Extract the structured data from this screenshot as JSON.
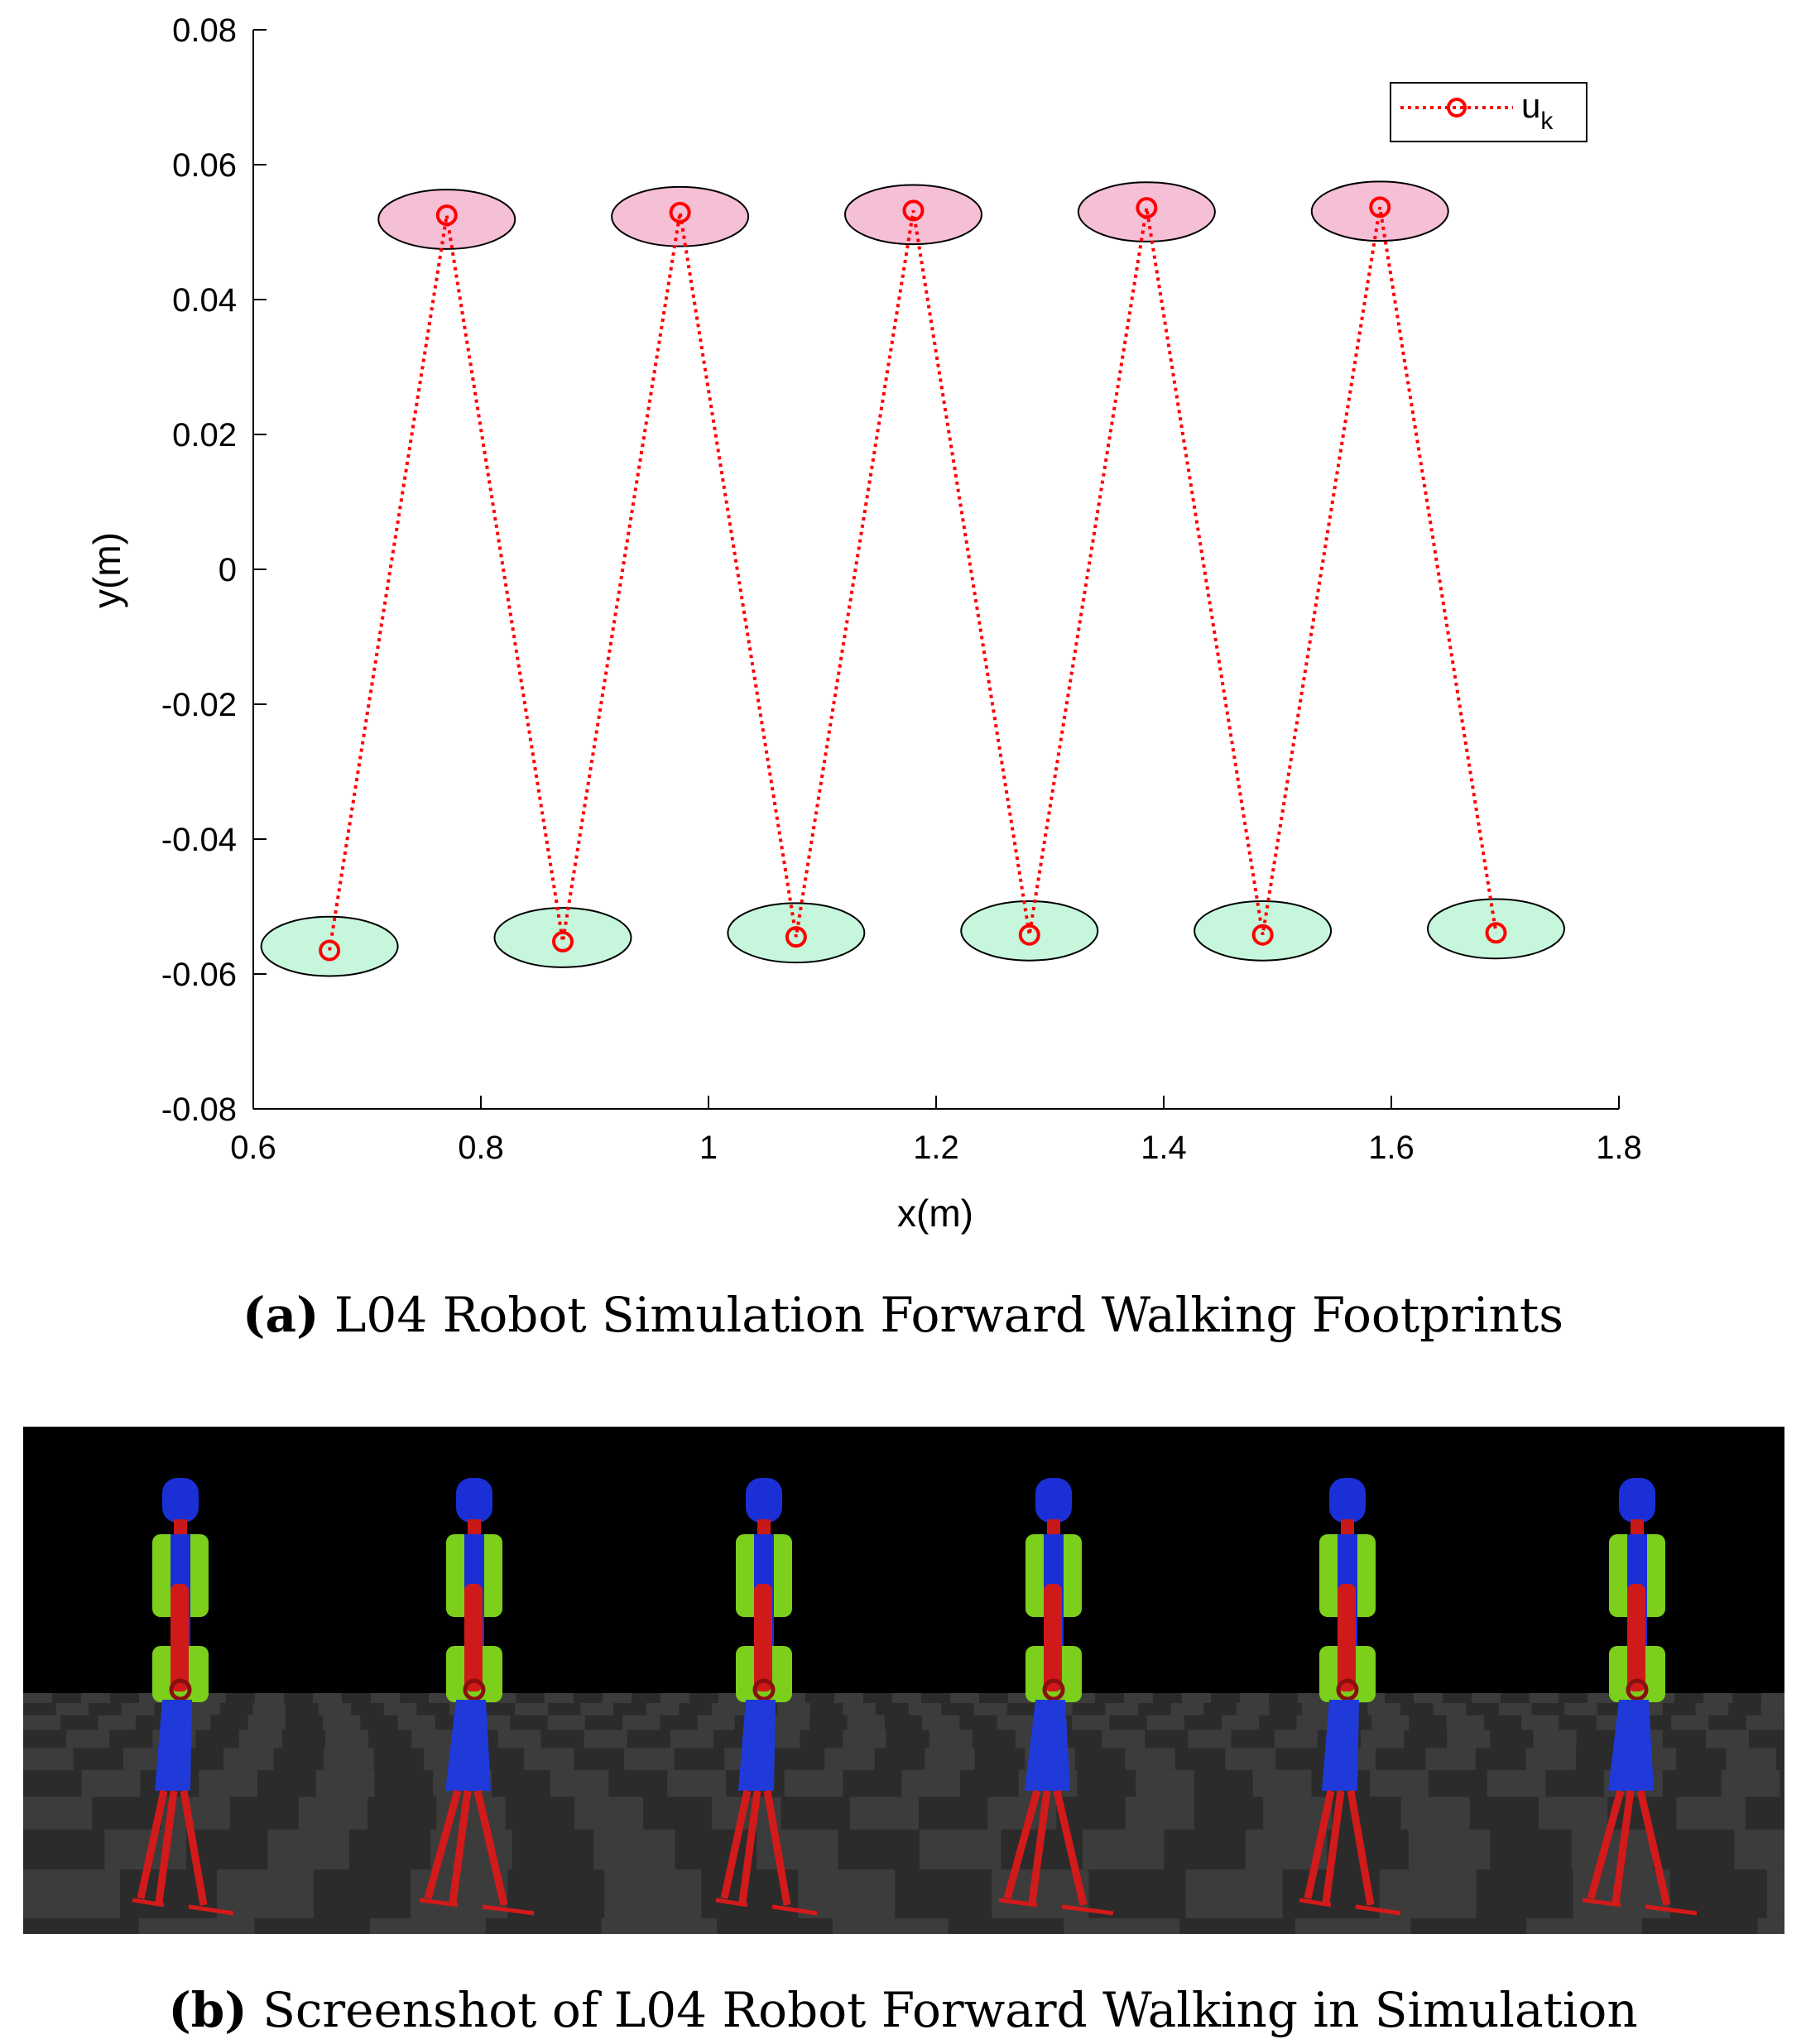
{
  "chart_data": {
    "type": "scatter",
    "title": "",
    "xlabel": "x(m)",
    "ylabel": "y(m)",
    "xlim": [
      0.6,
      1.8
    ],
    "ylim": [
      -0.08,
      0.08
    ],
    "xticks": [
      "0.6",
      "0.8",
      "1",
      "1.2",
      "1.4",
      "1.6",
      "1.8"
    ],
    "yticks": [
      "0.08",
      "0.06",
      "0.04",
      "0.02",
      "0",
      "-0.02",
      "-0.04",
      "-0.06",
      "-0.08"
    ],
    "legend": {
      "label": "u",
      "subscript": "k",
      "placement": "top-right"
    },
    "series": [
      {
        "name": "u_k",
        "line_style": "dotted",
        "marker": "circle",
        "color": "#ff0000",
        "points": [
          [
            0.667,
            -0.0565
          ],
          [
            0.77,
            0.0525
          ],
          [
            0.872,
            -0.0552
          ],
          [
            0.975,
            0.0529
          ],
          [
            1.077,
            -0.0545
          ],
          [
            1.18,
            0.0532
          ],
          [
            1.282,
            -0.0542
          ],
          [
            1.385,
            0.0536
          ],
          [
            1.487,
            -0.0542
          ],
          [
            1.59,
            0.0537
          ],
          [
            1.692,
            -0.0539
          ]
        ]
      }
    ],
    "footprints": {
      "left_color": "#f5bfd6",
      "right_color": "#c6f7dd",
      "width_m": 0.12,
      "height_m": 0.0088
    }
  },
  "captions": {
    "a_label": "(a)",
    "a_text": " L04 Robot Simulation Forward Walking Footprints",
    "b_label": "(b)",
    "b_text": " Screenshot of L04 Robot Forward Walking in Simulation"
  },
  "simulation": {
    "robot_count": 6,
    "colors": {
      "head": "#1a2fd6",
      "torso": "#7ccf1a",
      "arm": "#d01a1a",
      "leg_upper": "#1f3ad8",
      "leg_lower": "#d31a1a",
      "floor_dark": "#2b2b2b",
      "floor_light": "#3c3c3c"
    }
  }
}
